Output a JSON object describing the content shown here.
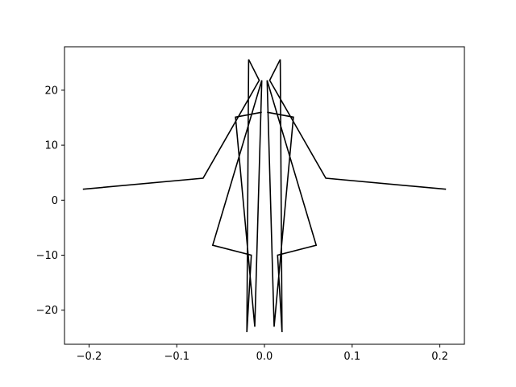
{
  "chart_data": {
    "type": "line",
    "title": "",
    "xlabel": "",
    "ylabel": "",
    "xlim": [
      -0.228,
      0.228
    ],
    "ylim": [
      -26.2,
      27.9
    ],
    "xticks": [
      -0.2,
      -0.1,
      0.0,
      0.1,
      0.2
    ],
    "xtick_labels": [
      "−0.2",
      "−0.1",
      "0.0",
      "0.1",
      "0.2"
    ],
    "yticks": [
      -20,
      -10,
      0,
      10,
      20
    ],
    "ytick_labels": [
      "−20",
      "−10",
      "0",
      "10",
      "20"
    ],
    "grid": false,
    "legend": "none",
    "series": [
      {
        "color": "#000000",
        "points": [
          [
            -0.207,
            2.0
          ],
          [
            -0.07,
            4.0
          ],
          [
            -0.006,
            21.8
          ],
          [
            -0.018,
            25.6
          ],
          [
            -0.02,
            -24.0
          ],
          [
            -0.015,
            -10.0
          ],
          [
            -0.059,
            -8.2
          ],
          [
            -0.003,
            21.8
          ],
          [
            -0.011,
            -23.0
          ],
          [
            -0.033,
            15.1
          ],
          [
            -0.003,
            16.0
          ]
        ]
      },
      {
        "color": "#000000",
        "points": [
          [
            0.207,
            2.0
          ],
          [
            0.07,
            4.0
          ],
          [
            0.006,
            21.8
          ],
          [
            0.018,
            25.6
          ],
          [
            0.02,
            -24.0
          ],
          [
            0.015,
            -10.0
          ],
          [
            0.059,
            -8.2
          ],
          [
            0.003,
            21.8
          ],
          [
            0.011,
            -23.0
          ],
          [
            0.033,
            15.1
          ],
          [
            0.003,
            16.0
          ]
        ]
      }
    ]
  }
}
